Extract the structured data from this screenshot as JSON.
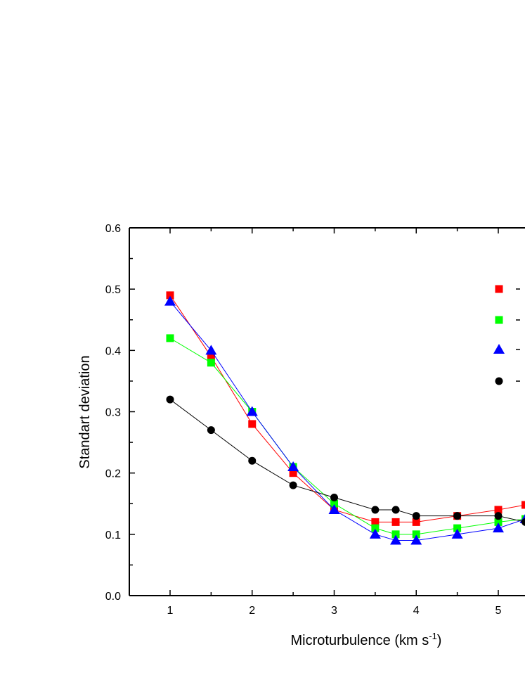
{
  "chart_data": {
    "type": "line",
    "xlabel": "Microturbulence (km s",
    "xlabel_sup": "-1",
    "xlabel_close": ")",
    "ylabel": "Standart deviation",
    "xlim": [
      0.5,
      5.33
    ],
    "ylim": [
      0.0,
      0.6
    ],
    "x_ticks": [
      1,
      2,
      3,
      4,
      5
    ],
    "y_ticks": [
      0.0,
      0.1,
      0.2,
      0.3,
      0.4,
      0.5,
      0.6
    ],
    "y_tick_labels": [
      "0.0",
      "0.1",
      "0.2",
      "0.3",
      "0.4",
      "0.5",
      "0.6"
    ],
    "grid": false,
    "legend_placement": "right",
    "series": [
      {
        "color": "#ff0000",
        "marker": "square",
        "x": [
          1,
          1.5,
          2,
          2.5,
          3,
          3.5,
          3.75,
          4,
          4.5,
          5,
          5.33
        ],
        "y": [
          0.49,
          0.39,
          0.28,
          0.2,
          0.14,
          0.12,
          0.12,
          0.12,
          0.13,
          0.14,
          0.148
        ]
      },
      {
        "color": "#00ff00",
        "marker": "square",
        "x": [
          1,
          1.5,
          2,
          2.5,
          3,
          3.5,
          3.75,
          4,
          4.5,
          5,
          5.33
        ],
        "y": [
          0.42,
          0.38,
          0.3,
          0.21,
          0.15,
          0.11,
          0.1,
          0.1,
          0.11,
          0.12,
          0.125
        ]
      },
      {
        "color": "#0000ff",
        "marker": "triangle",
        "x": [
          1,
          1.5,
          2,
          2.5,
          3,
          3.5,
          3.75,
          4,
          4.5,
          5,
          5.33
        ],
        "y": [
          0.48,
          0.4,
          0.3,
          0.21,
          0.14,
          0.1,
          0.09,
          0.09,
          0.1,
          0.11,
          0.125
        ]
      },
      {
        "color": "#000000",
        "marker": "circle",
        "x": [
          1,
          1.5,
          2,
          2.5,
          3,
          3.5,
          3.75,
          4,
          4.5,
          5,
          5.33
        ],
        "y": [
          0.32,
          0.27,
          0.22,
          0.18,
          0.16,
          0.14,
          0.14,
          0.13,
          0.13,
          0.13,
          0.12
        ]
      }
    ]
  }
}
